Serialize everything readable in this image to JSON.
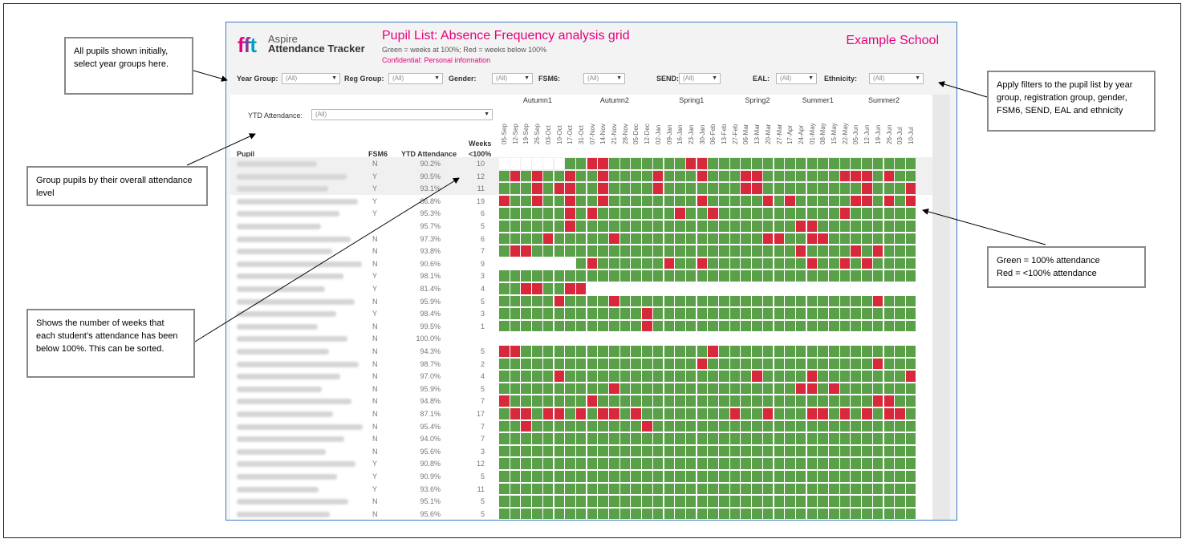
{
  "app": {
    "logo_text": "fft",
    "product_line1": "Aspire",
    "product_line2": "Attendance Tracker",
    "title": "Pupil List: Absence Frequency analysis grid",
    "subtitle": "Green = weeks at 100%; Red = weeks below 100%",
    "confidential": "Confidential: Personal information",
    "school": "Example School"
  },
  "filters": [
    {
      "label": "Year Group:",
      "value": "(All)"
    },
    {
      "label": "Reg Group:",
      "value": "(All)"
    },
    {
      "label": "Gender:",
      "value": "(All)"
    },
    {
      "label": "FSM6:",
      "value": "(All)"
    },
    {
      "label": "SEND:",
      "value": "(All)"
    },
    {
      "label": "EAL:",
      "value": "(All)"
    },
    {
      "label": "Ethnicity:",
      "value": "(All)"
    }
  ],
  "ytd_filter": {
    "label": "YTD Attendance:",
    "value": "(All)"
  },
  "columns": {
    "pupil": "Pupil",
    "fsm6": "FSM6",
    "ytd": "YTD Attendance",
    "weeks1": "Weeks",
    "weeks2": "<100%"
  },
  "terms": [
    {
      "name": "Autumn1",
      "weeks": 7
    },
    {
      "name": "Autumn2",
      "weeks": 7
    },
    {
      "name": "Spring1",
      "weeks": 7
    },
    {
      "name": "Spring2",
      "weeks": 5
    },
    {
      "name": "Summer1",
      "weeks": 6
    },
    {
      "name": "Summer2",
      "weeks": 6
    }
  ],
  "weeks": [
    "05-Sep",
    "12-Sep",
    "19-Sep",
    "26-Sep",
    "03-Oct",
    "10-Oct",
    "17-Oct",
    "31-Oct",
    "07-Nov",
    "14-Nov",
    "21-Nov",
    "28-Nov",
    "05-Dec",
    "12-Dec",
    "02-Jan",
    "09-Jan",
    "16-Jan",
    "23-Jan",
    "30-Jan",
    "06-Feb",
    "13-Feb",
    "27-Feb",
    "06-Mar",
    "13-Mar",
    "20-Mar",
    "27-Mar",
    "17-Apr",
    "24-Apr",
    "01-May",
    "08-May",
    "15-May",
    "22-May",
    "05-Jun",
    "12-Jun",
    "19-Jun",
    "26-Jun",
    "03-Jul",
    "10-Jul"
  ],
  "colors": {
    "green": "#5aa049",
    "red": "#d8283c",
    "title_pink": "#e5007e",
    "panel_border": "#3a7bc8"
  },
  "pupils": [
    {
      "fsm6": "N",
      "ytd": "90.2%",
      "weeks": "10",
      "grid": "......0011000000011000000000000000000011000000011"
    },
    {
      "fsm6": "Y",
      "ytd": "90.5%",
      "weeks": "12",
      "grid": "0101001001000010001000110000000111010001"
    },
    {
      "fsm6": "Y",
      "ytd": "93.1%",
      "weeks": "11",
      "grid": "0001011001000010000000110000000001000100"
    },
    {
      "fsm6": "Y",
      "ytd": "86.8%",
      "weeks": "19",
      "grid": "1001001001000000001000001010000011010111"
    },
    {
      "fsm6": "Y",
      "ytd": "95.3%",
      "weeks": "6",
      "grid": "0000001010000000100100000000000100000000"
    },
    {
      "fsm6": "",
      "ytd": "95.7%",
      "weeks": "5",
      "grid": "0000001000000000000000000001100000000000"
    },
    {
      "fsm6": "N",
      "ytd": "97.3%",
      "weeks": "6",
      "grid": "0000100000100000000000001100110000000000"
    },
    {
      "fsm6": "N",
      "ytd": "93.8%",
      "weeks": "7",
      "grid": "0110000000000000000000000001000010100000"
    },
    {
      "fsm6": "N",
      "ytd": "90.6%",
      "weeks": "9",
      "grid": ".......01000000100100000000010010100001"
    },
    {
      "fsm6": "Y",
      "ytd": "98.1%",
      "weeks": "3",
      "grid": "0000000000000000000000000000000000000011"
    },
    {
      "fsm6": "Y",
      "ytd": "81.4%",
      "weeks": "4",
      "grid": "00110011......................................"
    },
    {
      "fsm6": "N",
      "ytd": "95.9%",
      "weeks": "5",
      "grid": "0000010000100000000000000000000000100000"
    },
    {
      "fsm6": "Y",
      "ytd": "98.4%",
      "weeks": "3",
      "grid": "0000000000000100000000000000000000000000"
    },
    {
      "fsm6": "N",
      "ytd": "99.5%",
      "weeks": "1",
      "grid": "0000000000000100000000000000000000000000"
    },
    {
      "fsm6": "N",
      "ytd": "100.0%",
      "weeks": "",
      "grid": "......................................"
    },
    {
      "fsm6": "N",
      "ytd": "94.3%",
      "weeks": "5",
      "grid": "1100000000000000000100000000000000000000"
    },
    {
      "fsm6": "N",
      "ytd": "98.7%",
      "weeks": "2",
      "grid": "0000000000000000001000000000000000100000"
    },
    {
      "fsm6": "N",
      "ytd": "97.0%",
      "weeks": "4",
      "grid": "0000010000000000000000010000100000000100"
    },
    {
      "fsm6": "N",
      "ytd": "95.9%",
      "weeks": "5",
      "grid": "0000000000100000000000000001101000000000"
    },
    {
      "fsm6": "N",
      "ytd": "94.8%",
      "weeks": "7",
      "grid": "1000000010000000000000000000000000110000"
    },
    {
      "fsm6": "N",
      "ytd": "87.1%",
      "weeks": "17",
      "grid": "0110110101101000000001001000110101011000"
    },
    {
      "fsm6": "N",
      "ytd": "95.4%",
      "weeks": "7",
      "grid": "0010000000000100000000000000000000000000"
    },
    {
      "fsm6": "N",
      "ytd": "94.0%",
      "weeks": "7",
      "grid": "0000000000000000000000000000000000000000"
    },
    {
      "fsm6": "N",
      "ytd": "95.6%",
      "weeks": "3",
      "grid": "0000000000000000000000000000000000000000"
    },
    {
      "fsm6": "Y",
      "ytd": "90.8%",
      "weeks": "12",
      "grid": "0000000000000000000000000000000000000000"
    },
    {
      "fsm6": "Y",
      "ytd": "90.9%",
      "weeks": "5",
      "grid": "0000000000000000000000000000000000000000"
    },
    {
      "fsm6": "Y",
      "ytd": "93.6%",
      "weeks": "11",
      "grid": "0000000000000000000000000000000000000000"
    },
    {
      "fsm6": "N",
      "ytd": "95.1%",
      "weeks": "5",
      "grid": "0000000000000000000000000000000000000000"
    },
    {
      "fsm6": "N",
      "ytd": "95.6%",
      "weeks": "5",
      "grid": "0000000000000000000000000000000000000000"
    }
  ],
  "callouts": {
    "year_groups": "All pupils shown initially, select year groups here.",
    "group_pupils": "Group pupils by their overall attendance level",
    "weeks_below": "Shows the number of weeks that each student’s attendance has been below 100%.  This can be sorted.",
    "filters": "Apply filters to the pupil list by year group, registration group, gender, FSM6, SEND, EAL and ethnicity",
    "legend_green": "Green = 100% attendance",
    "legend_red": "Red = <100% attendance"
  }
}
